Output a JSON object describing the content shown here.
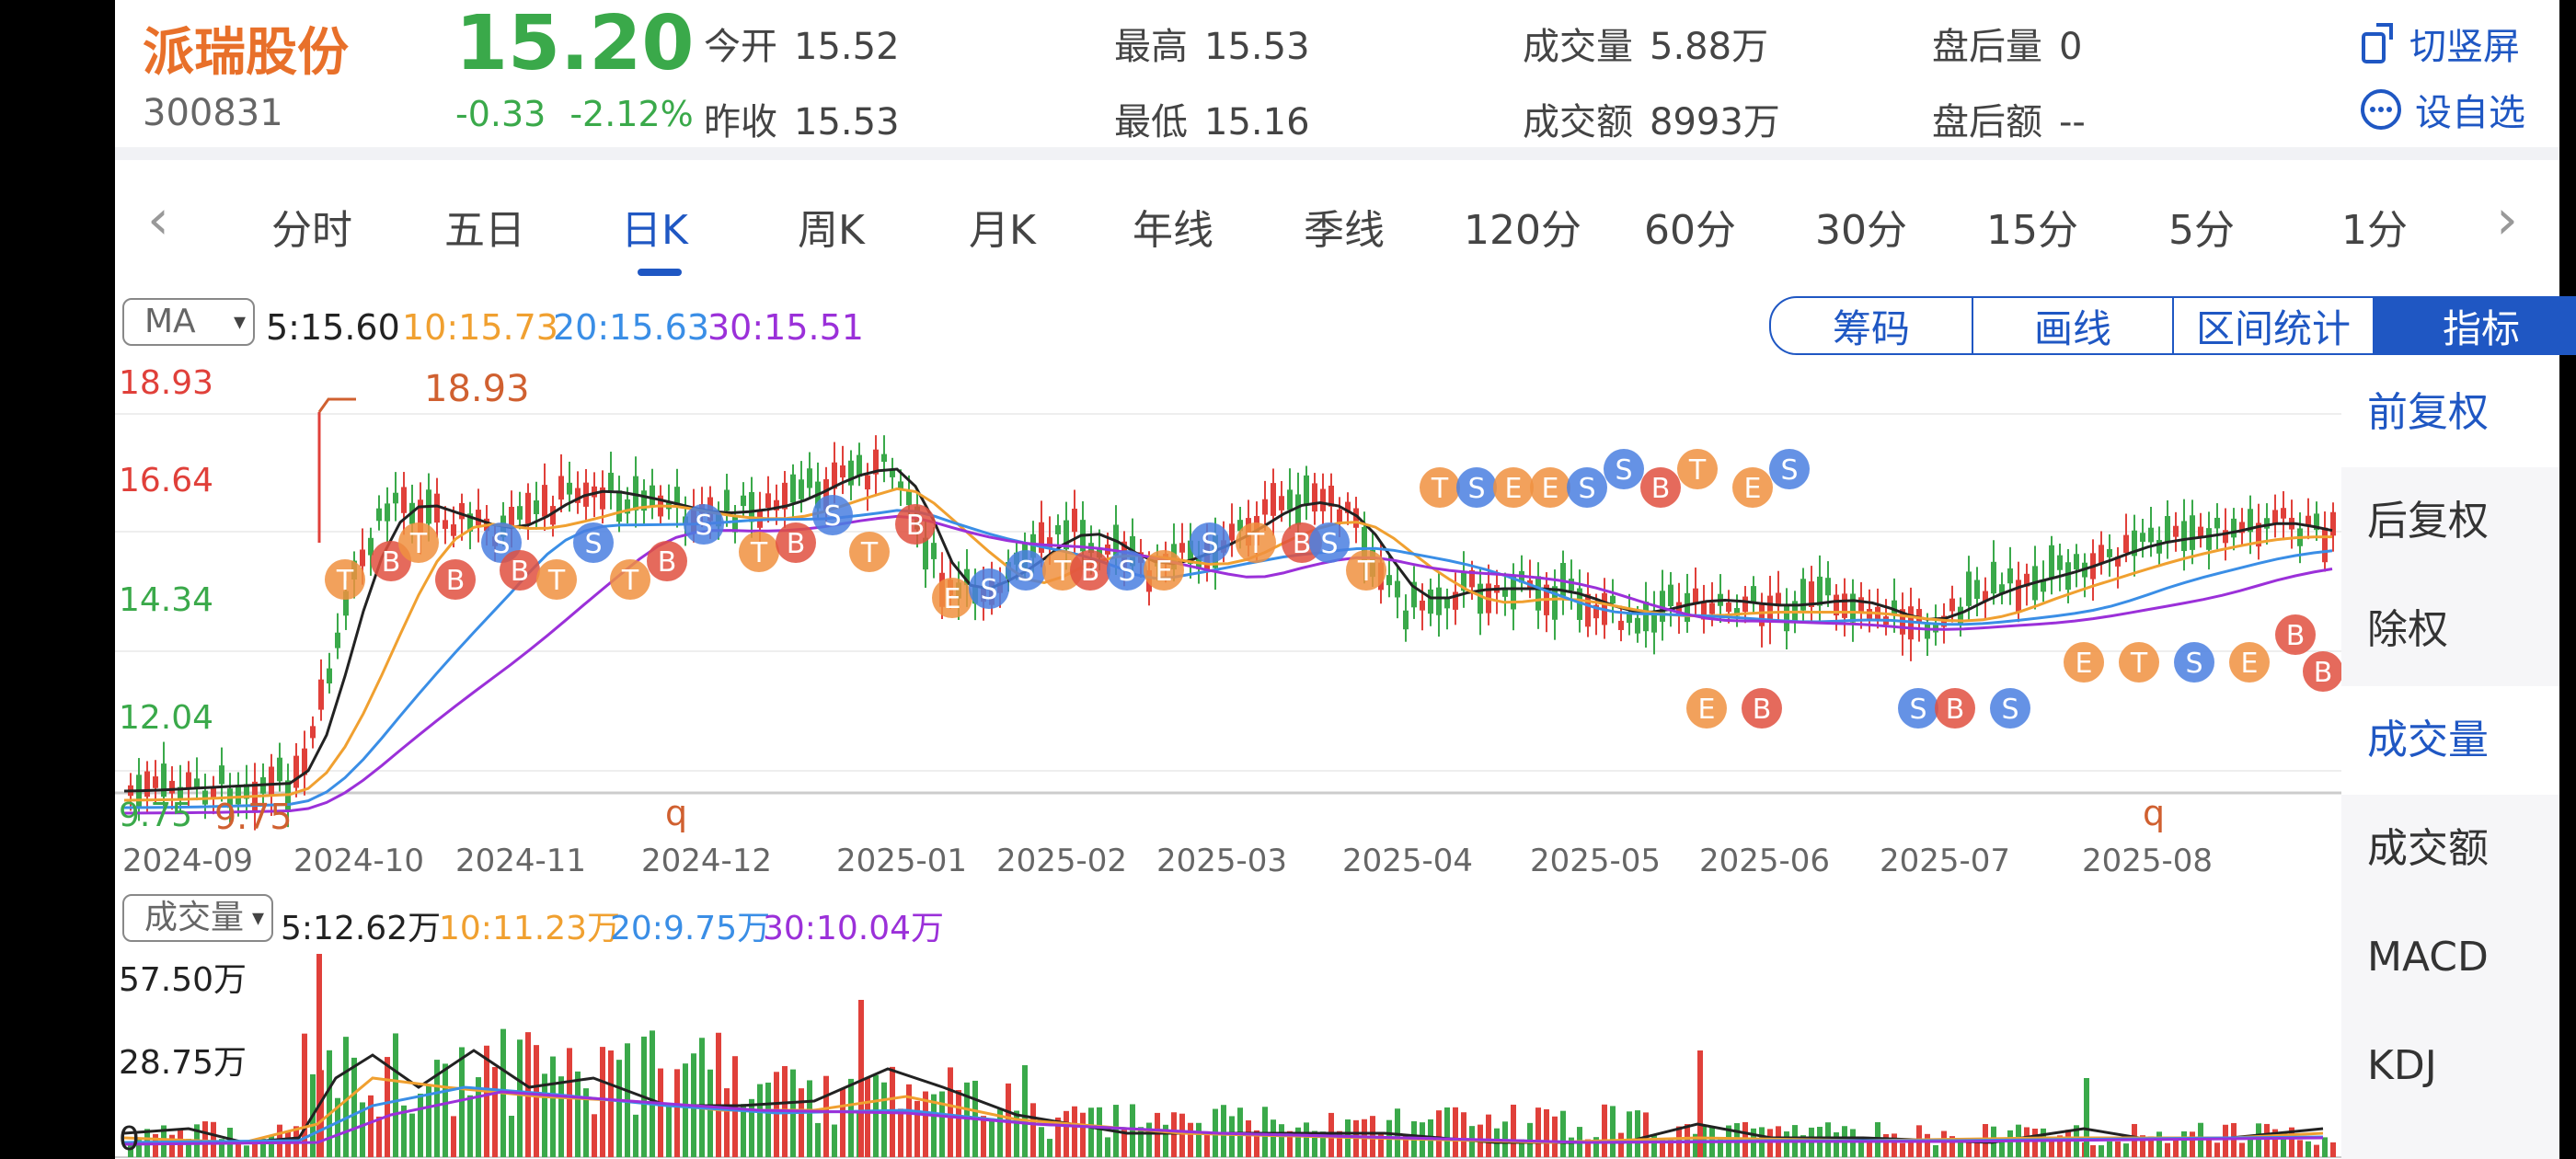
{
  "stock": {
    "name": "派瑞股份",
    "code": "300831",
    "price": "15.20",
    "change": "-0.33",
    "change_pct": "-2.12%"
  },
  "quote": {
    "open_label": "今开",
    "open": "15.52",
    "prev_close_label": "昨收",
    "prev_close": "15.53",
    "high_label": "最高",
    "high": "15.53",
    "low_label": "最低",
    "low": "15.16",
    "volume_label": "成交量",
    "volume": "5.88万",
    "amount_label": "成交额",
    "amount": "8993万",
    "after_vol_label": "盘后量",
    "after_vol": "0",
    "after_amt_label": "盘后额",
    "after_amt": "--"
  },
  "header_buttons": {
    "rotate": "切竖屏",
    "watchlist": "设自选"
  },
  "tabs": [
    "分时",
    "五日",
    "日K",
    "周K",
    "月K",
    "年线",
    "季线",
    "120分",
    "60分",
    "30分",
    "15分",
    "5分",
    "1分"
  ],
  "active_tab": "日K",
  "ma": {
    "selector": "MA",
    "ma5": "5:15.60",
    "ma10": "10:15.73",
    "ma20": "20:15.63",
    "ma30": "30:15.51"
  },
  "tools": [
    "筹码",
    "画线",
    "区间统计",
    "指标"
  ],
  "side_menu": [
    "前复权",
    "后复权",
    "除权",
    "成交量",
    "成交额",
    "MACD",
    "KDJ"
  ],
  "price_axis": {
    "max": "18.93",
    "p1": "16.64",
    "p2": "14.34",
    "p3": "12.04",
    "min": "9.75"
  },
  "annotations": {
    "high_mark": "18.93",
    "low_mark": "9.75",
    "q_marker": "q"
  },
  "dates": [
    "2024-09",
    "2024-10",
    "2024-11",
    "2024-12",
    "2025-01",
    "2025-02",
    "2025-03",
    "2025-04",
    "2025-05",
    "2025-06",
    "2025-07",
    "2025-08"
  ],
  "volume": {
    "selector": "成交量",
    "ma5": "5:12.62万",
    "ma10": "10:11.23万",
    "ma20": "20:9.75万",
    "ma30": "30:10.04万",
    "axis_max": "57.50万",
    "axis_mid": "28.75万",
    "axis_min": "0"
  },
  "colors": {
    "up": "#e0403a",
    "down": "#3aa94a",
    "accent": "#1f57c3",
    "ma5": "#222222",
    "ma10": "#f0a030",
    "ma20": "#3a8ee6",
    "ma30": "#9b30d9",
    "name": "#e8702a"
  }
}
